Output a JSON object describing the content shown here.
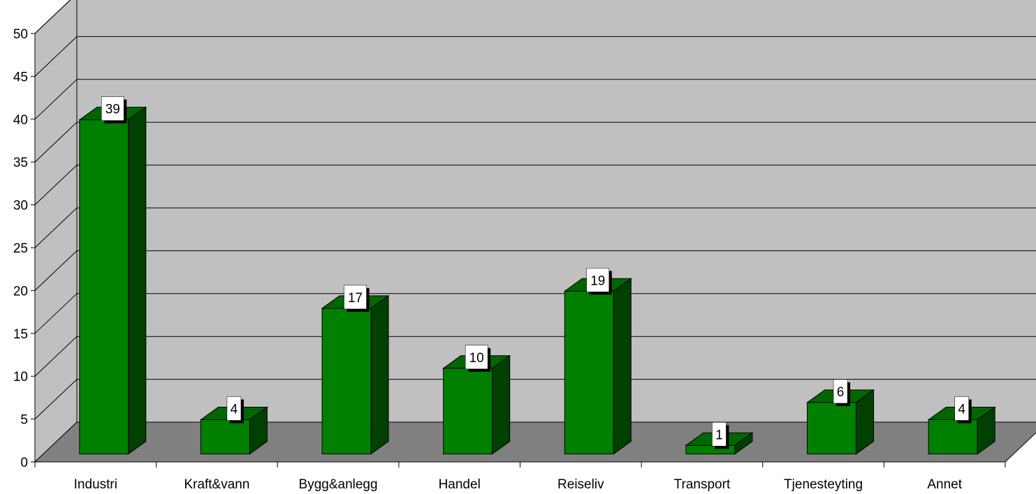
{
  "chart_data": {
    "type": "bar",
    "title": "",
    "xlabel": "",
    "ylabel": "",
    "categories": [
      "Industri",
      "Kraft&vann",
      "Bygg&anlegg",
      "Handel",
      "Reiseliv",
      "Transport",
      "Tjenesteyting",
      "Annet"
    ],
    "values": [
      39,
      4,
      17,
      10,
      19,
      1,
      6,
      4
    ],
    "ylim": [
      0,
      50
    ],
    "yticks": [
      "0",
      "5",
      "10",
      "15",
      "20",
      "25",
      "30",
      "35",
      "40",
      "45",
      "50"
    ],
    "data_labels": [
      "39",
      "4",
      "17",
      "10",
      "19",
      "1",
      "6",
      "4"
    ],
    "grid": true,
    "legend": "none",
    "style": "3d-bar",
    "colors": {
      "bar_front": "#008000",
      "bar_top": "#006600",
      "bar_side": "#004000",
      "back_wall": "#c0c0c0",
      "side_wall": "#c0c0c0",
      "floor": "#808080",
      "gridline": "#000000",
      "label_box": "#ffffff"
    }
  }
}
